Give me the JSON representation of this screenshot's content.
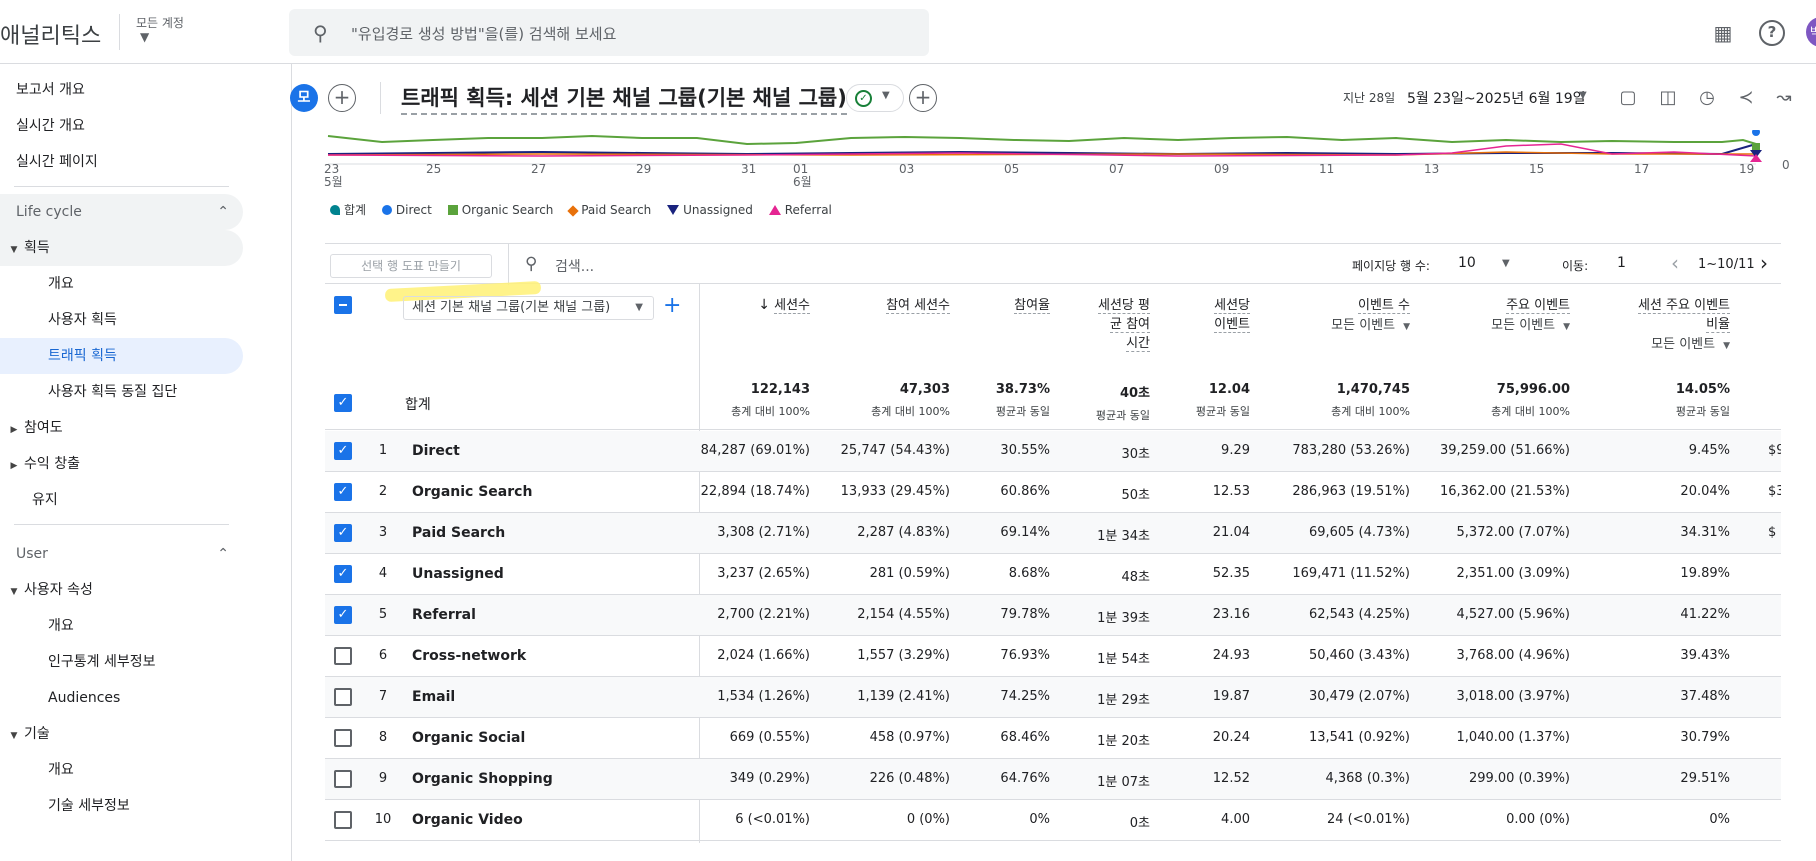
{
  "topbar": {
    "app_title": "애널리틱스",
    "account_label": "모든 계정",
    "search_placeholder": "\"유입경로 생성 방법\"을(를) 검색해 보세요",
    "avatar_initial": "박"
  },
  "sidebar": {
    "top_items": [
      "보고서 개요",
      "실시간 개요",
      "실시간 페이지"
    ],
    "lifecycle": {
      "title": "Life cycle",
      "acquisition": {
        "label": "획득",
        "children": [
          "개요",
          "사용자 획득",
          "트래픽 획득",
          "사용자 획득 동질 집단"
        ],
        "selected": "트래픽 획득"
      },
      "others": [
        "참여도",
        "수익 창출"
      ],
      "retention": "유지"
    },
    "user": {
      "title": "User",
      "user_attr": {
        "label": "사용자 속성",
        "children": [
          "개요",
          "인구통계 세부정보",
          "Audiences"
        ]
      },
      "tech": {
        "label": "기술",
        "children": [
          "개요",
          "기술 세부정보"
        ]
      }
    }
  },
  "header": {
    "comparison_badge": "모",
    "title": "트래픽 획득: 세션 기본 채널 그룹(기본 채널 그룹)",
    "date_label": "지난 28일",
    "date_range": "5월 23일~2025년 6월 19일"
  },
  "chart_data": {
    "type": "line",
    "x": [
      "23",
      "25",
      "27",
      "29",
      "31",
      "01",
      "03",
      "05",
      "07",
      "09",
      "11",
      "13",
      "15",
      "17",
      "19"
    ],
    "x_sublabels": {
      "23": "5월",
      "01": "6월"
    },
    "y_tick": "0",
    "legend_position": "bottom-left",
    "series": [
      {
        "name": "합계",
        "color": "#5ba33c"
      },
      {
        "name": "Direct",
        "color": "#1a73e8"
      },
      {
        "name": "Organic Search",
        "color": "#5ba33c"
      },
      {
        "name": "Paid Search",
        "color": "#e8710a"
      },
      {
        "name": "Unassigned",
        "color": "#1a237e"
      },
      {
        "name": "Referral",
        "color": "#e52592"
      }
    ]
  },
  "table": {
    "segment_button": "선택 행 도표 만들기",
    "search_placeholder": "검색...",
    "rows_per_page_label": "페이지당 행 수:",
    "rows_per_page": "10",
    "goto_label": "이동:",
    "goto_value": "1",
    "page_range": "1~10/11",
    "dimension": "세션 기본 채널 그룹(기본 채널 그룹)",
    "total_label": "합계",
    "columns": [
      {
        "label": "세션수",
        "sorted": true
      },
      {
        "label": "참여 세션수"
      },
      {
        "label": "참여율"
      },
      {
        "label1": "세션당 평",
        "label2": "균 참여",
        "label3": "시간"
      },
      {
        "label1": "세션당",
        "label2": "이벤트"
      },
      {
        "label": "이벤트 수",
        "sub": "모든 이벤트"
      },
      {
        "label": "주요 이벤트",
        "sub": "모든 이벤트"
      },
      {
        "label1": "세션 주요 이벤트",
        "label2": "비율",
        "sub": "모든 이벤트"
      }
    ],
    "totals": [
      {
        "n": "122,143",
        "s": "총계 대비 100%"
      },
      {
        "n": "47,303",
        "s": "총계 대비 100%"
      },
      {
        "n": "38.73%",
        "s": "평균과 동일"
      },
      {
        "n": "40초",
        "s": "평균과 동일"
      },
      {
        "n": "12.04",
        "s": "평균과 동일"
      },
      {
        "n": "1,470,745",
        "s": "총계 대비 100%"
      },
      {
        "n": "75,996.00",
        "s": "총계 대비 100%"
      },
      {
        "n": "14.05%",
        "s": "평균과 동일"
      }
    ],
    "rows": [
      {
        "i": "1",
        "name": "Direct",
        "checked": true,
        "v": [
          "84,287 (69.01%)",
          "25,747 (54.43%)",
          "30.55%",
          "30초",
          "9.29",
          "783,280 (53.26%)",
          "39,259.00 (51.66%)",
          "9.45%"
        ],
        "clip": "$9"
      },
      {
        "i": "2",
        "name": "Organic Search",
        "checked": true,
        "v": [
          "22,894 (18.74%)",
          "13,933 (29.45%)",
          "60.86%",
          "50초",
          "12.53",
          "286,963 (19.51%)",
          "16,362.00 (21.53%)",
          "20.04%"
        ],
        "clip": "$3"
      },
      {
        "i": "3",
        "name": "Paid Search",
        "checked": true,
        "v": [
          "3,308 (2.71%)",
          "2,287 (4.83%)",
          "69.14%",
          "1분 34초",
          "21.04",
          "69,605 (4.73%)",
          "5,372.00 (7.07%)",
          "34.31%"
        ],
        "clip": "$"
      },
      {
        "i": "4",
        "name": "Unassigned",
        "checked": true,
        "v": [
          "3,237 (2.65%)",
          "281 (0.59%)",
          "8.68%",
          "48초",
          "52.35",
          "169,471 (11.52%)",
          "2,351.00 (3.09%)",
          "19.89%"
        ],
        "clip": ""
      },
      {
        "i": "5",
        "name": "Referral",
        "checked": true,
        "v": [
          "2,700 (2.21%)",
          "2,154 (4.55%)",
          "79.78%",
          "1분 39초",
          "23.16",
          "62,543 (4.25%)",
          "4,527.00 (5.96%)",
          "41.22%"
        ],
        "clip": ""
      },
      {
        "i": "6",
        "name": "Cross-network",
        "checked": false,
        "v": [
          "2,024 (1.66%)",
          "1,557 (3.29%)",
          "76.93%",
          "1분 54초",
          "24.93",
          "50,460 (3.43%)",
          "3,768.00 (4.96%)",
          "39.43%"
        ],
        "clip": ""
      },
      {
        "i": "7",
        "name": "Email",
        "checked": false,
        "v": [
          "1,534 (1.26%)",
          "1,139 (2.41%)",
          "74.25%",
          "1분 29초",
          "19.87",
          "30,479 (2.07%)",
          "3,018.00 (3.97%)",
          "37.48%"
        ],
        "clip": ""
      },
      {
        "i": "8",
        "name": "Organic Social",
        "checked": false,
        "v": [
          "669 (0.55%)",
          "458 (0.97%)",
          "68.46%",
          "1분 20초",
          "20.24",
          "13,541 (0.92%)",
          "1,040.00 (1.37%)",
          "30.79%"
        ],
        "clip": ""
      },
      {
        "i": "9",
        "name": "Organic Shopping",
        "checked": false,
        "v": [
          "349 (0.29%)",
          "226 (0.48%)",
          "64.76%",
          "1분 07초",
          "12.52",
          "4,368 (0.3%)",
          "299.00 (0.39%)",
          "29.51%"
        ],
        "clip": ""
      },
      {
        "i": "10",
        "name": "Organic Video",
        "checked": false,
        "v": [
          "6 (<0.01%)",
          "0 (0%)",
          "0%",
          "0초",
          "4.00",
          "24 (<0.01%)",
          "0.00 (0%)",
          "0%"
        ],
        "clip": ""
      }
    ]
  }
}
